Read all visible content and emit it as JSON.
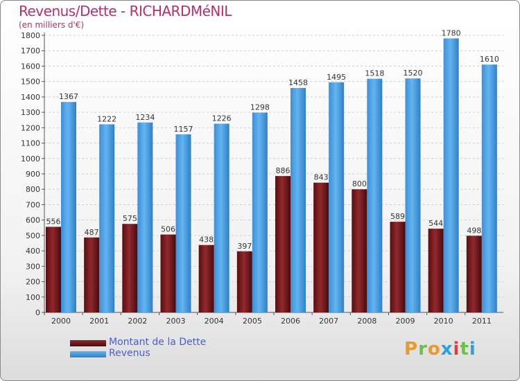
{
  "header": {
    "title": "Revenus/Dette - RICHARDMéNIL",
    "subtitle": "(en milliers d'€)"
  },
  "legend": [
    {
      "label": "Montant de la Dette",
      "color": "#7a1418"
    },
    {
      "label": "Revenus",
      "color": "#4aa3e8"
    }
  ],
  "logo": {
    "text": "Proxiti"
  },
  "chart_data": {
    "type": "bar",
    "title": "Revenus/Dette - RICHARDMéNIL",
    "subtitle": "(en milliers d'€)",
    "xlabel": "",
    "ylabel": "",
    "ylim": [
      0,
      1800
    ],
    "ytick_step": 100,
    "grid": true,
    "legend_position": "bottom-left",
    "categories": [
      "2000",
      "2001",
      "2002",
      "2003",
      "2004",
      "2005",
      "2006",
      "2007",
      "2008",
      "2009",
      "2010",
      "2011"
    ],
    "series": [
      {
        "name": "Montant de la Dette",
        "color": "#7a1418",
        "values": [
          556,
          487,
          575,
          506,
          438,
          397,
          886,
          843,
          800,
          589,
          544,
          498
        ]
      },
      {
        "name": "Revenus",
        "color": "#4aa3e8",
        "values": [
          1367,
          1222,
          1234,
          1157,
          1226,
          1298,
          1458,
          1495,
          1518,
          1520,
          1780,
          1610
        ]
      }
    ]
  }
}
